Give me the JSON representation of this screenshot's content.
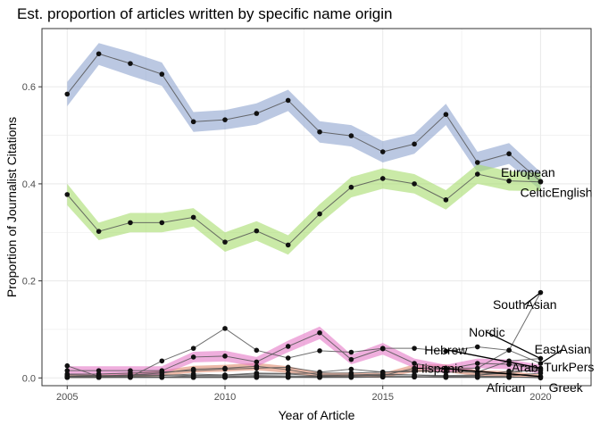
{
  "colors": {
    "European": "#8ea3cf",
    "CelticEnglish": "#a6dc6c",
    "SouthAsian": "#333333",
    "EastAsian": "#333333",
    "Hebrew": "#333333",
    "Nordic": "#333333",
    "Hispanic": "#e08a6e",
    "Arab": "#333333",
    "TurkPers": "#333333",
    "African": "#333333",
    "Greek": "#333333",
    "Italian": "#e478c7",
    "panel_border": "#333333",
    "grid": "#ebebeb"
  },
  "chart_data": {
    "type": "line",
    "title": "Est. proportion of articles written by specific name origin",
    "xlabel": "Year of Article",
    "ylabel": "Proportion of Journalist Citations",
    "xlim": [
      2004.2,
      2021.6
    ],
    "ylim": [
      -0.016,
      0.72
    ],
    "x_ticks": [
      2005,
      2010,
      2015,
      2020
    ],
    "y_ticks": [
      0.0,
      0.2,
      0.4,
      0.6
    ],
    "x_tick_labels": [
      "2005",
      "2010",
      "2015",
      "2020"
    ],
    "y_tick_labels": [
      "0.0",
      "0.2",
      "0.4",
      "0.6"
    ],
    "grid": true,
    "legend": "none",
    "x": [
      2005,
      2006,
      2007,
      2008,
      2009,
      2010,
      2011,
      2012,
      2013,
      2014,
      2015,
      2016,
      2017,
      2018,
      2019,
      2020
    ],
    "series": [
      {
        "name": "European",
        "values": [
          0.585,
          0.668,
          0.648,
          0.626,
          0.528,
          0.532,
          0.545,
          0.572,
          0.507,
          0.499,
          0.466,
          0.482,
          0.543,
          0.444,
          0.462,
          0.405
        ],
        "lower": [
          0.56,
          0.645,
          0.623,
          0.602,
          0.507,
          0.512,
          0.522,
          0.55,
          0.485,
          0.477,
          0.444,
          0.462,
          0.521,
          0.424,
          0.441,
          0.387
        ],
        "upper": [
          0.61,
          0.69,
          0.672,
          0.65,
          0.548,
          0.552,
          0.566,
          0.594,
          0.529,
          0.521,
          0.488,
          0.503,
          0.565,
          0.466,
          0.484,
          0.424
        ]
      },
      {
        "name": "CelticEnglish",
        "values": [
          0.378,
          0.302,
          0.32,
          0.32,
          0.331,
          0.28,
          0.303,
          0.274,
          0.338,
          0.393,
          0.411,
          0.4,
          0.367,
          0.42,
          0.406,
          0.404
        ],
        "lower": [
          0.356,
          0.284,
          0.3,
          0.3,
          0.312,
          0.26,
          0.283,
          0.254,
          0.318,
          0.372,
          0.39,
          0.38,
          0.347,
          0.4,
          0.386,
          0.385
        ],
        "upper": [
          0.4,
          0.32,
          0.34,
          0.34,
          0.35,
          0.3,
          0.323,
          0.294,
          0.358,
          0.414,
          0.432,
          0.42,
          0.387,
          0.44,
          0.426,
          0.423
        ]
      },
      {
        "name": "SouthAsian",
        "values": [
          0.025,
          0.003,
          0.002,
          0.035,
          0.061,
          0.102,
          0.057,
          0.041,
          0.056,
          0.053,
          0.061,
          0.061,
          0.055,
          0.064,
          0.057,
          0.176
        ]
      },
      {
        "name": "Nordic",
        "values": [
          0.008,
          0.008,
          0.01,
          0.012,
          0.015,
          0.018,
          0.02,
          0.022,
          0.012,
          0.018,
          0.012,
          0.015,
          0.012,
          0.012,
          0.035,
          0.04
        ]
      },
      {
        "name": "EastAsian",
        "values": [
          0.006,
          0.005,
          0.004,
          0.005,
          0.008,
          0.006,
          0.01,
          0.009,
          0.01,
          0.01,
          0.012,
          0.013,
          0.02,
          0.02,
          0.057,
          0.03
        ]
      },
      {
        "name": "Hebrew",
        "values": [
          0.003,
          0.004,
          0.006,
          0.006,
          0.005,
          0.006,
          0.008,
          0.008,
          0.004,
          0.006,
          0.008,
          0.006,
          0.005,
          0.006,
          0.01,
          0.02
        ]
      },
      {
        "name": "Hispanic",
        "values": [
          0.003,
          0.004,
          0.006,
          0.01,
          0.018,
          0.02,
          0.024,
          0.017,
          0.006,
          0.006,
          0.005,
          0.02,
          0.02,
          0.01,
          0.008,
          0.003
        ],
        "lower": [
          0.0,
          0.0,
          0.001,
          0.004,
          0.011,
          0.013,
          0.016,
          0.01,
          0.001,
          0.001,
          0.0,
          0.012,
          0.012,
          0.004,
          0.002,
          0.0
        ],
        "upper": [
          0.007,
          0.008,
          0.011,
          0.016,
          0.025,
          0.027,
          0.031,
          0.024,
          0.011,
          0.011,
          0.01,
          0.028,
          0.028,
          0.016,
          0.014,
          0.007
        ]
      },
      {
        "name": "Italian",
        "values": [
          0.015,
          0.015,
          0.015,
          0.015,
          0.043,
          0.045,
          0.033,
          0.065,
          0.093,
          0.038,
          0.06,
          0.03,
          0.018,
          0.03,
          0.028,
          0.018
        ],
        "lower": [
          0.006,
          0.006,
          0.006,
          0.006,
          0.032,
          0.034,
          0.023,
          0.053,
          0.08,
          0.028,
          0.048,
          0.02,
          0.009,
          0.02,
          0.018,
          0.009
        ],
        "upper": [
          0.024,
          0.024,
          0.024,
          0.024,
          0.054,
          0.056,
          0.043,
          0.077,
          0.106,
          0.048,
          0.072,
          0.04,
          0.027,
          0.04,
          0.038,
          0.027
        ]
      },
      {
        "name": "Arab",
        "values": [
          0.002,
          0.002,
          0.002,
          0.002,
          0.004,
          0.004,
          0.005,
          0.004,
          0.003,
          0.004,
          0.006,
          0.006,
          0.003,
          0.005,
          0.014,
          0.015
        ]
      },
      {
        "name": "TurkPers",
        "values": [
          0.001,
          0.001,
          0.001,
          0.001,
          0.001,
          0.001,
          0.002,
          0.002,
          0.001,
          0.002,
          0.002,
          0.002,
          0.002,
          0.003,
          0.004,
          0.01
        ]
      },
      {
        "name": "African",
        "values": [
          0.001,
          0.001,
          0.002,
          0.002,
          0.002,
          0.002,
          0.003,
          0.002,
          0.002,
          0.002,
          0.003,
          0.003,
          0.002,
          0.002,
          0.002,
          0.0
        ]
      },
      {
        "name": "Greek",
        "values": [
          0.001,
          0.001,
          0.001,
          0.001,
          0.001,
          0.001,
          0.001,
          0.001,
          0.001,
          0.001,
          0.002,
          0.002,
          0.001,
          0.001,
          0.001,
          0.002
        ]
      }
    ],
    "annotations": [
      {
        "text": "European",
        "x": 2019.6,
        "y": 0.424,
        "anchor_y": 0.424
      },
      {
        "text": "CelticEnglish",
        "x": 2020.5,
        "y": 0.382,
        "anchor_y": 0.382
      },
      {
        "text": "SouthAsian",
        "x": 2019.5,
        "y": 0.151,
        "anchor_y": 0.176
      },
      {
        "text": "Nordic",
        "x": 2018.3,
        "y": 0.094,
        "anchor_y": 0.04
      },
      {
        "text": "EastAsian",
        "x": 2020.7,
        "y": 0.059,
        "anchor_y": 0.03
      },
      {
        "text": "Hebrew",
        "x": 2017.0,
        "y": 0.058,
        "anchor_y": 0.02
      },
      {
        "text": "Hispanic",
        "x": 2016.8,
        "y": 0.02,
        "anchor_y": 0.003
      },
      {
        "text": "Arab",
        "x": 2019.5,
        "y": 0.022,
        "anchor_y": 0.015
      },
      {
        "text": "TurkPers",
        "x": 2020.9,
        "y": 0.023,
        "anchor_y": 0.01
      },
      {
        "text": "African",
        "x": 2018.9,
        "y": -0.02,
        "anchor_y": 0.0
      },
      {
        "text": "Greek",
        "x": 2020.8,
        "y": -0.02,
        "anchor_y": 0.002
      }
    ]
  }
}
